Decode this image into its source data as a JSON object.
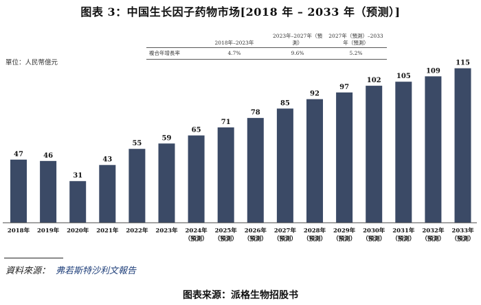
{
  "title": "图表 3：中国生长因子药物市场[2018 年 – 2033 年（预测）]",
  "unit_label": "單位：人民幣億元",
  "cagr_table": {
    "headers": [
      "2018年–2023年",
      "2023年–2027年（預測）",
      "2027年（預測）–2033年（預測）"
    ],
    "row_label": "複合年增長率",
    "values": [
      "4.7%",
      "9.6%",
      "5.2%"
    ]
  },
  "chart_data": {
    "type": "bar",
    "categories": [
      "2018年",
      "2019年",
      "2020年",
      "2021年",
      "2022年",
      "2023年",
      "2024年（預測）",
      "2025年（預測）",
      "2026年（預測）",
      "2027年（預測）",
      "2028年（預測）",
      "2029年（預測）",
      "2030年（預測）",
      "2031年（預測）",
      "2032年（預測）",
      "2033年（預測）"
    ],
    "category_lines": [
      [
        "2018年"
      ],
      [
        "2019年"
      ],
      [
        "2020年"
      ],
      [
        "2021年"
      ],
      [
        "2022年"
      ],
      [
        "2023年"
      ],
      [
        "2024年",
        "（預測）"
      ],
      [
        "2025年",
        "（預測）"
      ],
      [
        "2026年",
        "（預測）"
      ],
      [
        "2027年",
        "（預測）"
      ],
      [
        "2028年",
        "（預測）"
      ],
      [
        "2029年",
        "（預測）"
      ],
      [
        "2030年",
        "（預測）"
      ],
      [
        "2031年",
        "（預測）"
      ],
      [
        "2032年",
        "（預測）"
      ],
      [
        "2033年",
        "（預測）"
      ]
    ],
    "values": [
      47,
      46,
      31,
      43,
      55,
      59,
      65,
      71,
      78,
      85,
      92,
      97,
      102,
      105,
      109,
      115
    ],
    "ylabel": "單位：人民幣億元",
    "ylim": [
      0,
      125
    ],
    "bar_color": "#3b4a66",
    "grid": false
  },
  "source_label": "資料來源：",
  "source_publisher": "弗若斯特沙利文報告",
  "footer": "图表来源：派格生物招股书"
}
